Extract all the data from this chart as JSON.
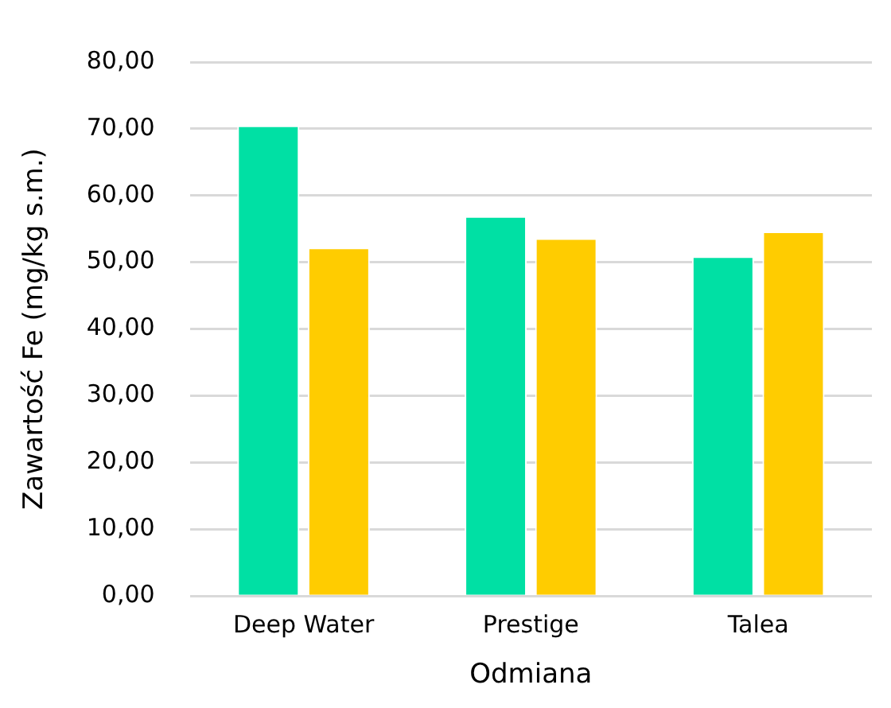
{
  "chart_data": {
    "type": "bar",
    "xlabel": "Odmiana",
    "ylabel": "Zawartość Fe (mg/kg s.m.)",
    "categories": [
      "Deep Water",
      "Prestige",
      "Talea"
    ],
    "series": [
      {
        "color": "#00e0a4",
        "values": [
          70.5,
          56.9,
          50.9
        ]
      },
      {
        "color": "#ffcc00",
        "values": [
          52.2,
          53.6,
          54.6
        ]
      }
    ],
    "ylim": [
      0,
      80
    ],
    "yticks": [
      {
        "value": 0,
        "label": "0,00"
      },
      {
        "value": 10,
        "label": "10,00"
      },
      {
        "value": 20,
        "label": "20,00"
      },
      {
        "value": 30,
        "label": "30,00"
      },
      {
        "value": 40,
        "label": "40,00"
      },
      {
        "value": 50,
        "label": "50,00"
      },
      {
        "value": 60,
        "label": "60,00"
      },
      {
        "value": 70,
        "label": "70,00"
      },
      {
        "value": 80,
        "label": "80,00"
      }
    ],
    "grid": "y",
    "legend": false
  }
}
